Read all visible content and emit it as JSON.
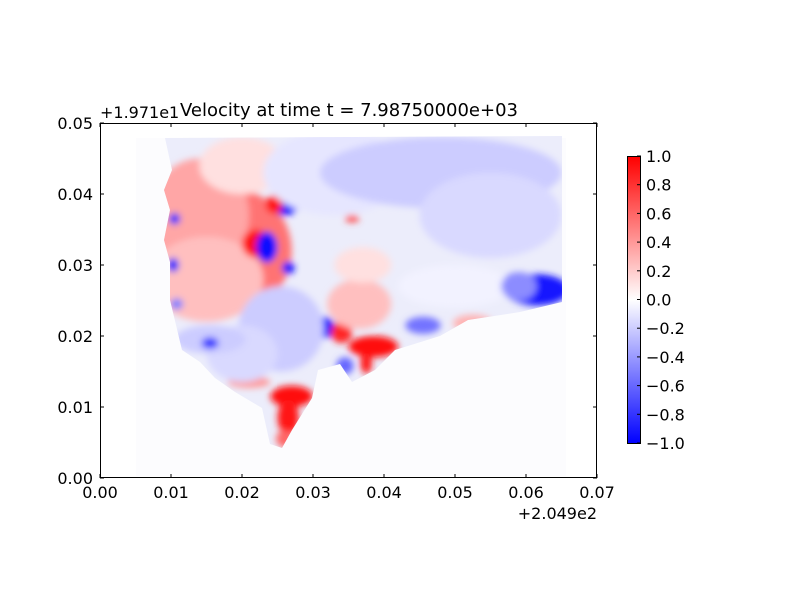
{
  "chart_data": {
    "type": "heatmap",
    "title": "Velocity at time t = 7.98750000e+03",
    "xlabel": "",
    "ylabel": "",
    "xlim": [
      0.0,
      0.07
    ],
    "ylim": [
      0.0,
      0.05
    ],
    "x_ticks": [
      "0.00",
      "0.01",
      "0.02",
      "0.03",
      "0.04",
      "0.05",
      "0.06",
      "0.07"
    ],
    "y_ticks": [
      "0.00",
      "0.01",
      "0.02",
      "0.03",
      "0.04",
      "0.05"
    ],
    "x_offset_label": "+2.049e2",
    "y_offset_label": "+1.971e1",
    "colormap": "bwr",
    "colorbar": {
      "range": [
        -1.0,
        1.0
      ],
      "ticks": [
        "1.0",
        "0.8",
        "0.6",
        "0.4",
        "0.2",
        "0.0",
        "−0.2",
        "−0.4",
        "−0.6",
        "−0.8",
        "−1.0"
      ]
    },
    "grid": false,
    "regions": [
      {
        "x": 0.018,
        "y": 0.032,
        "rx": 0.009,
        "ry": 0.009,
        "value": 0.55
      },
      {
        "x": 0.014,
        "y": 0.037,
        "rx": 0.007,
        "ry": 0.008,
        "value": 0.35
      },
      {
        "x": 0.015,
        "y": 0.028,
        "rx": 0.008,
        "ry": 0.006,
        "value": 0.25
      },
      {
        "x": 0.02,
        "y": 0.044,
        "rx": 0.006,
        "ry": 0.004,
        "value": 0.12
      },
      {
        "x": 0.022,
        "y": 0.033,
        "rx": 0.002,
        "ry": 0.002,
        "value": 0.95
      },
      {
        "x": 0.0235,
        "y": 0.0325,
        "rx": 0.0015,
        "ry": 0.0022,
        "value": -0.95
      },
      {
        "x": 0.026,
        "y": 0.0385,
        "rx": 0.002,
        "ry": 0.0015,
        "value": -0.95
      },
      {
        "x": 0.0245,
        "y": 0.0385,
        "rx": 0.0012,
        "ry": 0.0013,
        "value": 0.9
      },
      {
        "x": 0.0275,
        "y": 0.0405,
        "rx": 0.0008,
        "ry": 0.0008,
        "value": 0.85
      },
      {
        "x": 0.0265,
        "y": 0.0296,
        "rx": 0.0009,
        "ry": 0.0009,
        "value": -0.9
      },
      {
        "x": 0.0315,
        "y": 0.0212,
        "rx": 0.0016,
        "ry": 0.0015,
        "value": -0.95
      },
      {
        "x": 0.03,
        "y": 0.0195,
        "rx": 0.0009,
        "ry": 0.0018,
        "value": 0.9
      },
      {
        "x": 0.034,
        "y": 0.0205,
        "rx": 0.0015,
        "ry": 0.0015,
        "value": 0.85
      },
      {
        "x": 0.0385,
        "y": 0.0185,
        "rx": 0.0035,
        "ry": 0.0015,
        "value": 0.95
      },
      {
        "x": 0.0365,
        "y": 0.0245,
        "rx": 0.0045,
        "ry": 0.0035,
        "value": 0.25
      },
      {
        "x": 0.037,
        "y": 0.03,
        "rx": 0.004,
        "ry": 0.0025,
        "value": 0.12
      },
      {
        "x": 0.027,
        "y": 0.0115,
        "rx": 0.003,
        "ry": 0.0015,
        "value": 0.95
      },
      {
        "x": 0.0265,
        "y": 0.0085,
        "rx": 0.0015,
        "ry": 0.0025,
        "value": 0.9
      },
      {
        "x": 0.026,
        "y": 0.0055,
        "rx": 0.0012,
        "ry": 0.0012,
        "value": 0.6
      },
      {
        "x": 0.021,
        "y": 0.0135,
        "rx": 0.003,
        "ry": 0.0008,
        "value": 0.4
      },
      {
        "x": 0.0255,
        "y": 0.021,
        "rx": 0.006,
        "ry": 0.006,
        "value": -0.2
      },
      {
        "x": 0.02,
        "y": 0.0175,
        "rx": 0.005,
        "ry": 0.004,
        "value": -0.15
      },
      {
        "x": 0.0155,
        "y": 0.0195,
        "rx": 0.005,
        "ry": 0.002,
        "value": -0.2
      },
      {
        "x": 0.033,
        "y": 0.043,
        "rx": 0.01,
        "ry": 0.006,
        "value": -0.1
      },
      {
        "x": 0.048,
        "y": 0.043,
        "rx": 0.017,
        "ry": 0.005,
        "value": -0.2
      },
      {
        "x": 0.055,
        "y": 0.037,
        "rx": 0.01,
        "ry": 0.006,
        "value": -0.15
      },
      {
        "x": 0.05,
        "y": 0.027,
        "rx": 0.008,
        "ry": 0.003,
        "value": -0.05
      },
      {
        "x": 0.0615,
        "y": 0.0265,
        "rx": 0.0045,
        "ry": 0.0022,
        "value": -0.9
      },
      {
        "x": 0.059,
        "y": 0.027,
        "rx": 0.0025,
        "ry": 0.002,
        "value": -0.45
      },
      {
        "x": 0.0455,
        "y": 0.0215,
        "rx": 0.0025,
        "ry": 0.0012,
        "value": -0.55
      },
      {
        "x": 0.0525,
        "y": 0.0218,
        "rx": 0.0028,
        "ry": 0.0012,
        "value": 0.3
      },
      {
        "x": 0.0105,
        "y": 0.0365,
        "rx": 0.0008,
        "ry": 0.0008,
        "value": -0.85
      },
      {
        "x": 0.0103,
        "y": 0.03,
        "rx": 0.0008,
        "ry": 0.001,
        "value": -0.9
      },
      {
        "x": 0.0108,
        "y": 0.0245,
        "rx": 0.0009,
        "ry": 0.0008,
        "value": -0.5
      },
      {
        "x": 0.0155,
        "y": 0.019,
        "rx": 0.0012,
        "ry": 0.0008,
        "value": -0.8
      },
      {
        "x": 0.0355,
        "y": 0.0365,
        "rx": 0.001,
        "ry": 0.0005,
        "value": 0.7
      },
      {
        "x": 0.0345,
        "y": 0.0158,
        "rx": 0.0012,
        "ry": 0.0012,
        "value": -0.6
      },
      {
        "x": 0.0375,
        "y": 0.0162,
        "rx": 0.0008,
        "ry": 0.0015,
        "value": 0.9
      }
    ]
  }
}
